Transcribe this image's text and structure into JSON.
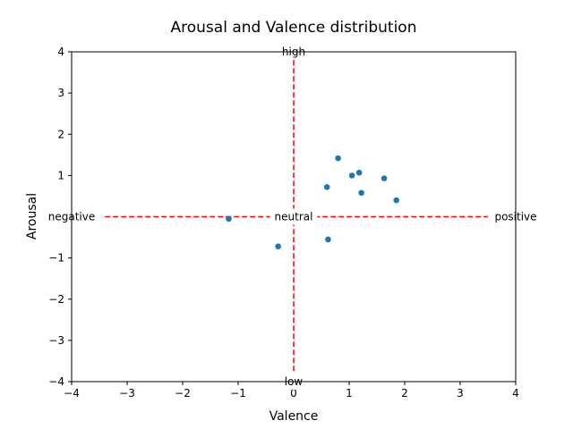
{
  "chart_data": {
    "type": "scatter",
    "title": "Arousal and Valence distribution",
    "xlabel": "Valence",
    "ylabel": "Arousal",
    "xlim": [
      -4,
      4
    ],
    "ylim": [
      -4,
      4
    ],
    "xticks": [
      "−4",
      "−3",
      "−2",
      "−1",
      "0",
      "1",
      "2",
      "3",
      "4"
    ],
    "yticks": [
      "−4",
      "−3",
      "−2",
      "−1",
      "0",
      "1",
      "2",
      "3",
      "4"
    ],
    "grid": false,
    "point_color": "#1f77b4",
    "reference_line_color": "#ff0000",
    "points": [
      {
        "x": 0.8,
        "y": 1.42
      },
      {
        "x": 1.05,
        "y": 1.0
      },
      {
        "x": 1.18,
        "y": 1.07
      },
      {
        "x": 1.63,
        "y": 0.93
      },
      {
        "x": 0.6,
        "y": 0.72
      },
      {
        "x": 1.22,
        "y": 0.58
      },
      {
        "x": 1.85,
        "y": 0.4
      },
      {
        "x": -1.17,
        "y": -0.05
      },
      {
        "x": 0.62,
        "y": -0.55
      },
      {
        "x": -0.28,
        "y": -0.72
      }
    ],
    "annotations": {
      "high": "high",
      "low": "low",
      "negative": "negative",
      "positive": "positive",
      "neutral": "neutral"
    }
  }
}
